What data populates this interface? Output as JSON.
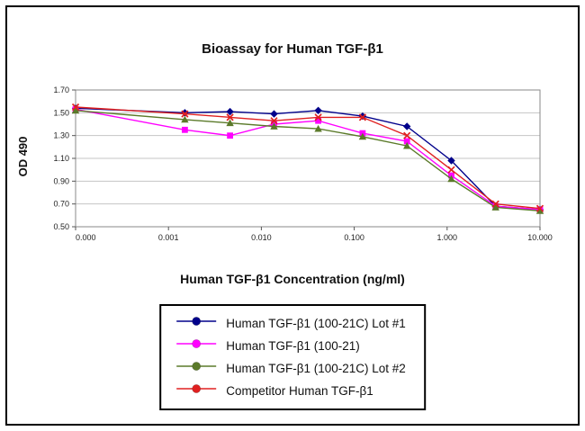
{
  "chart_data": {
    "type": "line",
    "title": "Bioassay for Human TGF-β1",
    "xlabel": "Human TGF-β1 Concentration (ng/ml)",
    "ylabel": "OD 490",
    "ylim": [
      0.5,
      1.7
    ],
    "yticks": [
      0.5,
      0.7,
      0.9,
      1.1,
      1.3,
      1.5,
      1.7
    ],
    "ytick_labels": [
      "0.50",
      "0.70",
      "0.90",
      "1.10",
      "1.30",
      "1.50",
      "1.70"
    ],
    "x_axis": {
      "scale": "log",
      "range_log10": [
        -4,
        1
      ],
      "ticklabels": [
        "0.000",
        "0.001",
        "0.010",
        "0.100",
        "1.000",
        "10.000"
      ]
    },
    "grid": "horizontal",
    "legend_position": "bottom-center",
    "x": [
      0.0001,
      0.0015,
      0.0046,
      0.0137,
      0.041,
      0.123,
      0.37,
      1.11,
      3.33,
      10
    ],
    "series": [
      {
        "name": "Human TGF-β1 (100-21C) Lot #1",
        "color": "#00008b",
        "marker": "diamond",
        "values": [
          1.54,
          1.5,
          1.51,
          1.49,
          1.52,
          1.47,
          1.38,
          1.08,
          0.68,
          0.65
        ]
      },
      {
        "name": "Human TGF-β1 (100-21)",
        "color": "#ff00ff",
        "marker": "square",
        "values": [
          1.53,
          1.35,
          1.3,
          1.4,
          1.43,
          1.32,
          1.25,
          0.95,
          0.68,
          0.65
        ]
      },
      {
        "name": "Human TGF-β1 (100-21C) Lot #2",
        "color": "#5b7a2a",
        "marker": "triangle",
        "values": [
          1.52,
          1.44,
          1.41,
          1.38,
          1.36,
          1.29,
          1.21,
          0.92,
          0.67,
          0.64
        ]
      },
      {
        "name": "Competitor Human TGF-β1",
        "color": "#e02020",
        "marker": "x",
        "values": [
          1.55,
          1.49,
          1.46,
          1.43,
          1.46,
          1.46,
          1.3,
          1.0,
          0.7,
          0.66
        ]
      }
    ]
  }
}
